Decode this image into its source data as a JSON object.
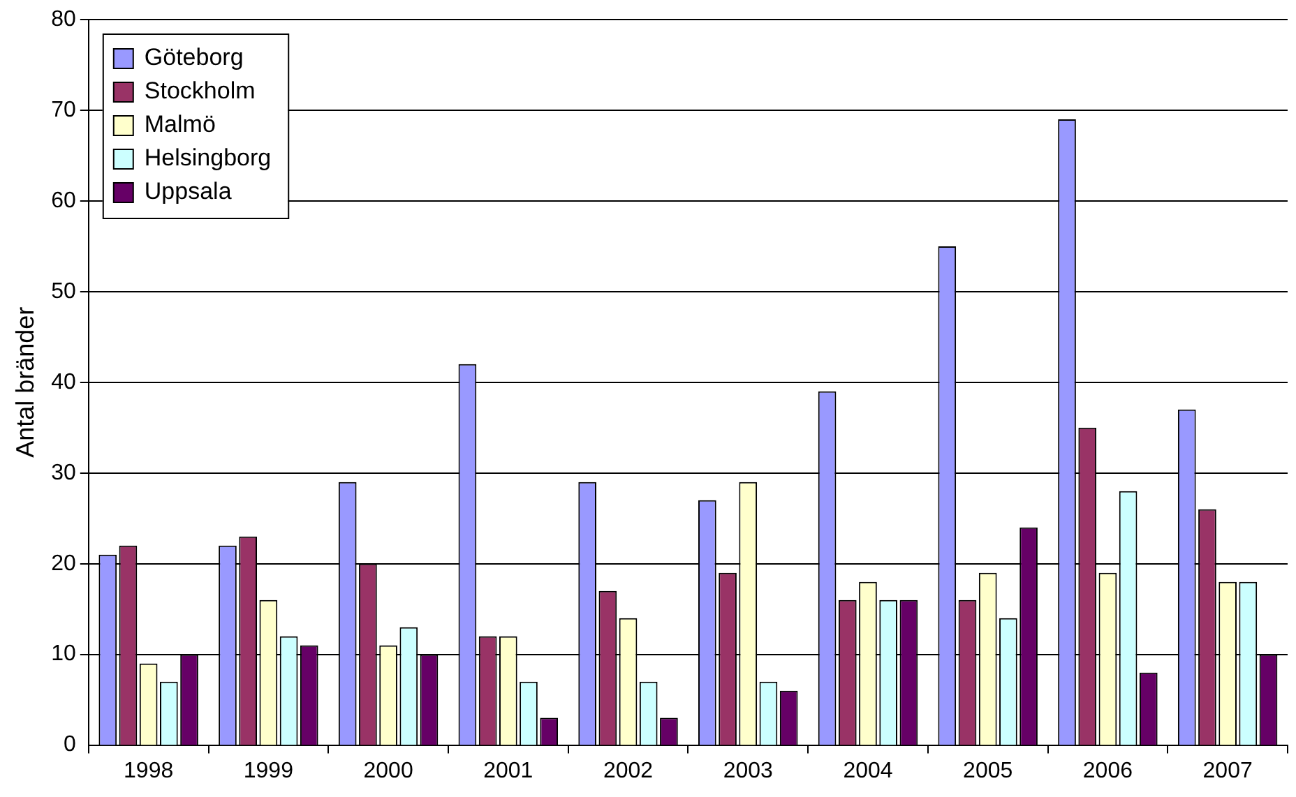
{
  "chart_data": {
    "type": "bar",
    "ylabel": "Antal bränder",
    "categories": [
      "1998",
      "1999",
      "2000",
      "2001",
      "2002",
      "2003",
      "2004",
      "2005",
      "2006",
      "2007"
    ],
    "series": [
      {
        "name": "Göteborg",
        "color": "#9999ff",
        "values": [
          21,
          22,
          29,
          42,
          29,
          27,
          39,
          55,
          69,
          37
        ]
      },
      {
        "name": "Stockholm",
        "color": "#993366",
        "values": [
          22,
          23,
          20,
          12,
          17,
          19,
          16,
          16,
          35,
          26
        ]
      },
      {
        "name": "Malmö",
        "color": "#ffffcc",
        "values": [
          9,
          16,
          11,
          12,
          14,
          29,
          18,
          19,
          19,
          18
        ]
      },
      {
        "name": "Helsingborg",
        "color": "#ccffff",
        "values": [
          7,
          12,
          13,
          7,
          7,
          7,
          16,
          14,
          28,
          18
        ]
      },
      {
        "name": "Uppsala",
        "color": "#660066",
        "values": [
          10,
          11,
          10,
          3,
          3,
          6,
          16,
          24,
          8,
          10
        ]
      }
    ],
    "ylim": [
      0,
      80
    ],
    "yticks": [
      0,
      10,
      20,
      30,
      40,
      50,
      60,
      70,
      80
    ],
    "grid": "y",
    "legend": "top left"
  }
}
